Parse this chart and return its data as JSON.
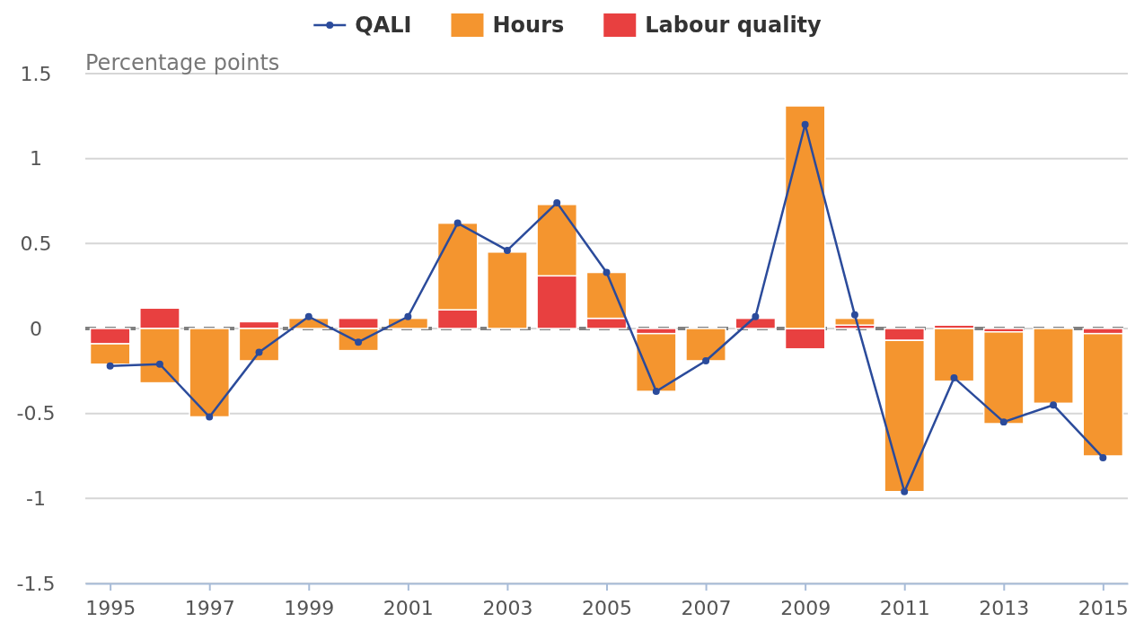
{
  "chart_data": {
    "type": "bar",
    "stacked": true,
    "ylabel": "Percentage points",
    "x": [
      1995,
      1996,
      1997,
      1998,
      1999,
      2000,
      2001,
      2002,
      2003,
      2004,
      2005,
      2006,
      2007,
      2008,
      2009,
      2010,
      2011,
      2012,
      2013,
      2014,
      2015
    ],
    "series": [
      {
        "name": "Labour quality",
        "color": "#e84040",
        "values": [
          -0.09,
          0.12,
          0,
          0.04,
          0,
          0.06,
          0,
          0.11,
          0,
          0.31,
          0.06,
          -0.03,
          0,
          0.06,
          -0.12,
          0.02,
          -0.07,
          0.02,
          -0.02,
          0,
          -0.03
        ]
      },
      {
        "name": "Hours",
        "color": "#f4952f",
        "values": [
          -0.12,
          -0.32,
          -0.52,
          -0.19,
          0.06,
          -0.13,
          0.06,
          0.51,
          0.45,
          0.42,
          0.27,
          -0.34,
          -0.19,
          0,
          1.31,
          0.04,
          -0.89,
          -0.31,
          -0.54,
          -0.44,
          -0.72
        ]
      },
      {
        "name": "QALI",
        "type": "line",
        "color": "#2b4b9b",
        "marker": "circle",
        "values": [
          -0.22,
          -0.21,
          -0.52,
          -0.14,
          0.07,
          -0.08,
          0.07,
          0.62,
          0.46,
          0.74,
          0.33,
          -0.37,
          -0.19,
          0.07,
          1.2,
          0.08,
          -0.96,
          -0.29,
          -0.55,
          -0.45,
          -0.76
        ]
      }
    ],
    "xlim": [
      1994.5,
      2015.5
    ],
    "xticks": [
      1995,
      1997,
      1999,
      2001,
      2003,
      2005,
      2007,
      2009,
      2011,
      2013,
      2015
    ],
    "ylim": [
      -1.5,
      1.5
    ],
    "yticks": [
      -1.5,
      -1,
      -0.5,
      0,
      0.5,
      1,
      1.5
    ],
    "grid": "y",
    "legend": "top",
    "ref_lines": [
      {
        "axis": "y",
        "value": 0,
        "color": "#808080",
        "line_style": "dashed"
      }
    ]
  }
}
